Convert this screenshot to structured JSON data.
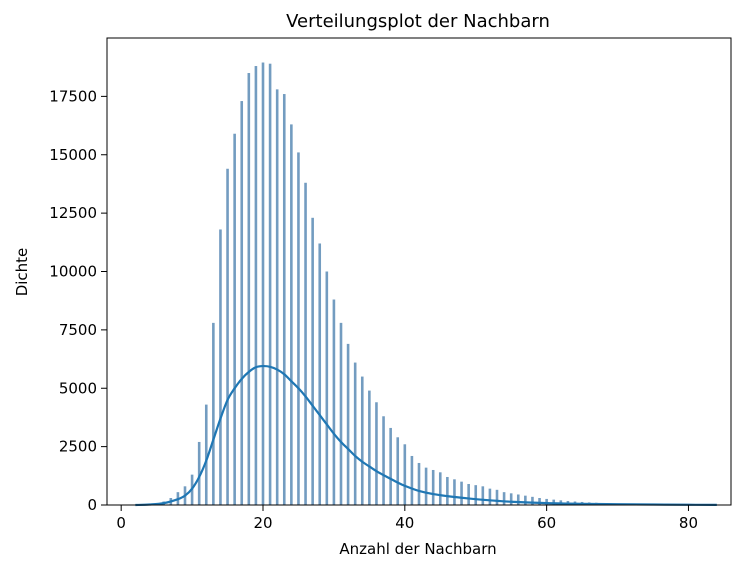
{
  "chart_data": {
    "type": "bar",
    "title": "Verteilungsplot der Nachbarn",
    "xlabel": "Anzahl der Nachbarn",
    "ylabel": "Dichte",
    "xlim": [
      -2,
      86
    ],
    "ylim": [
      0,
      20000
    ],
    "xticks": [
      0,
      20,
      40,
      60,
      80
    ],
    "yticks": [
      0,
      2500,
      5000,
      7500,
      10000,
      12500,
      15000,
      17500
    ],
    "grid": false,
    "bar_color": "#5b8bb5",
    "line_color": "#1f77b4",
    "bars": {
      "x": [
        2,
        3,
        4,
        5,
        6,
        7,
        8,
        9,
        10,
        11,
        12,
        13,
        14,
        15,
        16,
        17,
        18,
        19,
        20,
        21,
        22,
        23,
        24,
        25,
        26,
        27,
        28,
        29,
        30,
        31,
        32,
        33,
        34,
        35,
        36,
        37,
        38,
        39,
        40,
        41,
        42,
        43,
        44,
        45,
        46,
        47,
        48,
        49,
        50,
        51,
        52,
        53,
        54,
        55,
        56,
        57,
        58,
        59,
        60,
        61,
        62,
        63,
        64,
        65,
        66,
        67,
        68,
        69,
        70,
        71,
        72,
        73,
        74,
        75,
        76,
        77,
        78,
        79,
        80,
        81,
        82,
        83,
        84
      ],
      "values": [
        10,
        20,
        40,
        80,
        150,
        300,
        550,
        800,
        1300,
        2700,
        4300,
        7800,
        11800,
        14400,
        15900,
        17300,
        18500,
        18800,
        18950,
        18900,
        17800,
        17600,
        16300,
        15100,
        13800,
        12300,
        11200,
        10000,
        8800,
        7800,
        6900,
        6100,
        5500,
        4900,
        4400,
        3800,
        3300,
        2900,
        2600,
        2100,
        1800,
        1600,
        1500,
        1400,
        1200,
        1100,
        1000,
        900,
        850,
        800,
        700,
        650,
        550,
        500,
        450,
        400,
        350,
        300,
        260,
        230,
        200,
        170,
        150,
        130,
        110,
        95,
        80,
        70,
        60,
        50,
        45,
        40,
        35,
        30,
        25,
        20,
        18,
        15,
        12,
        10,
        8,
        6,
        5
      ]
    },
    "kde": {
      "x": [
        2,
        4,
        6,
        8,
        9,
        10,
        11,
        12,
        13,
        14,
        15,
        16,
        17,
        18,
        19,
        20,
        21,
        22,
        23,
        24,
        25,
        26,
        27,
        28,
        29,
        30,
        31,
        32,
        33,
        34,
        35,
        36,
        37,
        38,
        39,
        40,
        42,
        44,
        46,
        48,
        50,
        52,
        55,
        60,
        65,
        70,
        75,
        80,
        84
      ],
      "y": [
        0,
        20,
        80,
        250,
        400,
        700,
        1200,
        1900,
        2800,
        3700,
        4500,
        5000,
        5400,
        5700,
        5900,
        5950,
        5920,
        5800,
        5600,
        5300,
        5000,
        4650,
        4250,
        3850,
        3450,
        3050,
        2700,
        2400,
        2100,
        1850,
        1650,
        1450,
        1280,
        1120,
        960,
        820,
        600,
        470,
        380,
        310,
        250,
        200,
        140,
        80,
        50,
        35,
        20,
        10,
        5
      ]
    }
  }
}
